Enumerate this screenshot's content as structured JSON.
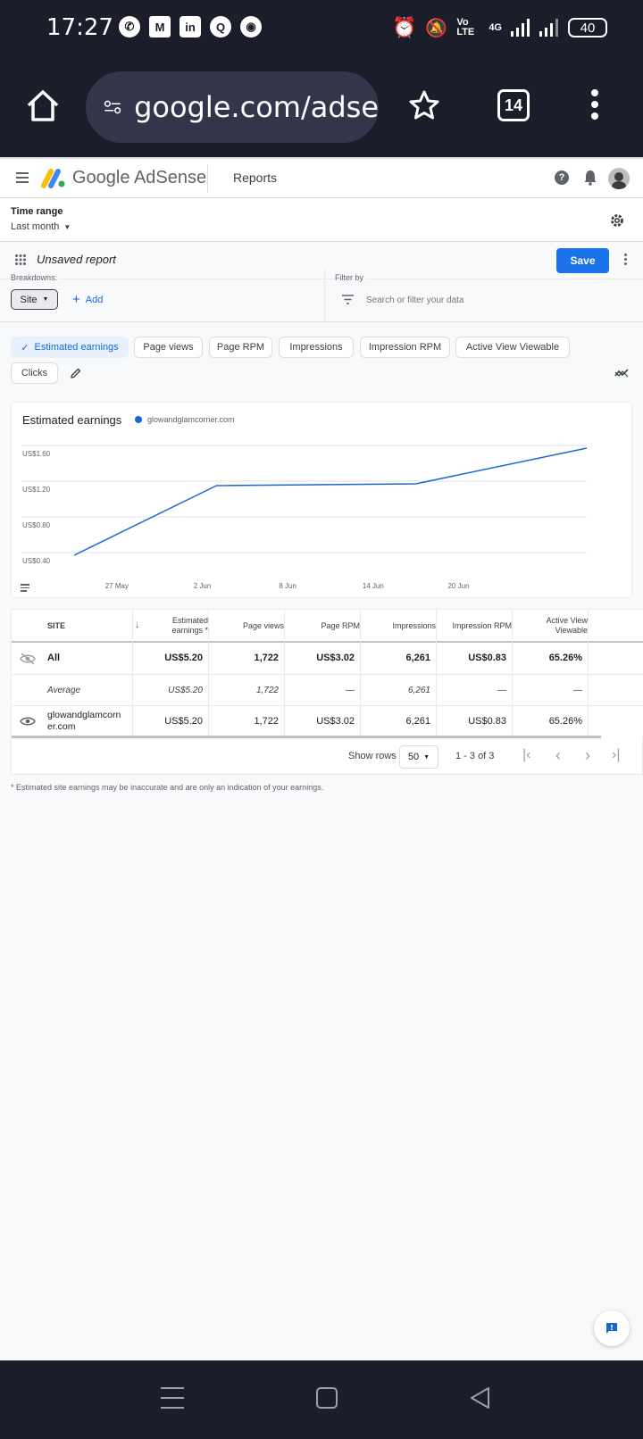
{
  "status_bar": {
    "time": "17:27",
    "network": "4G",
    "volte": "Vo LTE",
    "battery": "40"
  },
  "browser": {
    "url": "google.com/adse",
    "tab_count": "14"
  },
  "app": {
    "brand": "Google AdSense",
    "section": "Reports"
  },
  "time_range": {
    "label": "Time range",
    "value": "Last month"
  },
  "report": {
    "name": "Unsaved report",
    "save_label": "Save"
  },
  "breakdowns": {
    "label": "Breakdowns:",
    "chip": "Site",
    "add_label": "Add"
  },
  "filter": {
    "label": "Filter by",
    "placeholder": "Search or filter your data"
  },
  "metric_chips": [
    {
      "label": "Estimated earnings",
      "selected": true
    },
    {
      "label": "Page views",
      "selected": false
    },
    {
      "label": "Page RPM",
      "selected": false
    },
    {
      "label": "Impressions",
      "selected": false
    },
    {
      "label": "Impression RPM",
      "selected": false
    },
    {
      "label": "Active View Viewable",
      "selected": false
    },
    {
      "label": "Clicks",
      "selected": false
    }
  ],
  "chart_data": {
    "type": "line",
    "title": "Estimated earnings",
    "series": [
      {
        "name": "glowandglamcorner.com",
        "color": "#1967d2",
        "points": [
          [
            "24 May",
            0.37
          ],
          [
            "3 Jun",
            1.15
          ],
          [
            "17 Jun",
            1.17
          ],
          [
            "29 Jun",
            1.57
          ]
        ]
      }
    ],
    "x_ticks": [
      "27 May",
      "2 Jun",
      "8 Jun",
      "14 Jun",
      "20 Jun"
    ],
    "y_ticks": [
      "US$1.60",
      "US$1.20",
      "US$0.80",
      "US$0.40"
    ],
    "ylim": [
      0.4,
      1.6
    ],
    "grid": true
  },
  "table": {
    "headers": [
      "SITE",
      "Estimated earnings *",
      "Page views",
      "Page RPM",
      "Impressions",
      "Impression RPM",
      "Active View Viewable"
    ],
    "rows": [
      {
        "site": "All",
        "values": [
          "US$5.20",
          "1,722",
          "US$3.02",
          "6,261",
          "US$0.83",
          "65.26%"
        ]
      },
      {
        "site": "Average",
        "values": [
          "US$5.20",
          "1,722",
          "—",
          "6,261",
          "—",
          "—"
        ]
      },
      {
        "site": "glowandglamcorn er.com",
        "values": [
          "US$5.20",
          "1,722",
          "US$3.02",
          "6,261",
          "US$0.83",
          "65.26%"
        ]
      }
    ],
    "show_rows_label": "Show rows",
    "rows_per_page": "50",
    "range": "1 - 3 of 3"
  },
  "footnote": "* Estimated site earnings may be inaccurate and are only an indication of your earnings."
}
